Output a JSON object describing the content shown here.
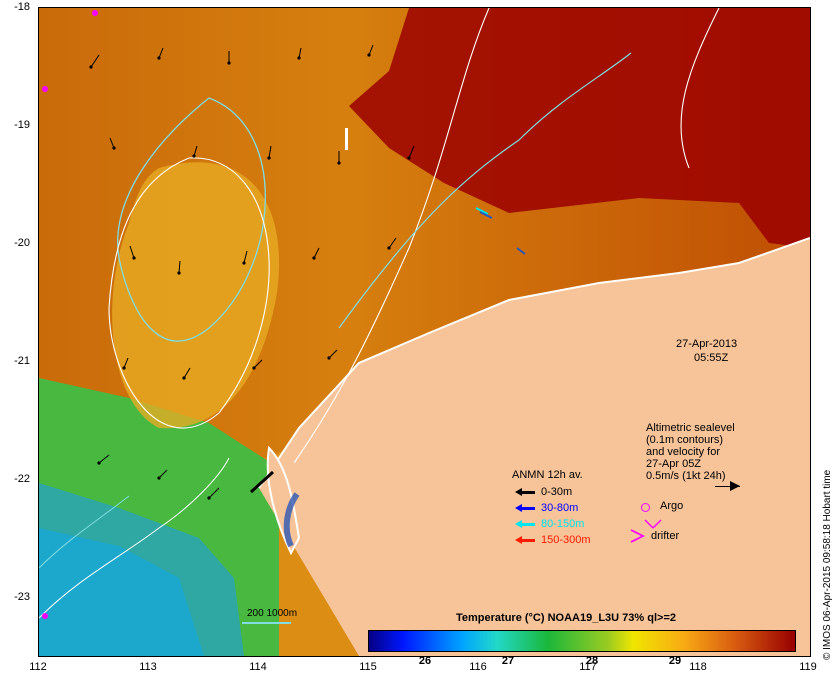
{
  "map": {
    "timestamp_date": "27-Apr-2013",
    "timestamp_time": "05:55Z",
    "latitudes": [
      "-18",
      "-19",
      "-20",
      "-21",
      "-22",
      "-23"
    ],
    "longitudes": [
      "112",
      "113",
      "114",
      "115",
      "116",
      "117",
      "118",
      "119"
    ],
    "contour_legend": "200  1000m",
    "side_credit": "© IMOS 06-Apr-2015 09:58:18 Hobart time"
  },
  "sealevel_note": {
    "lines": [
      "Altimetric sealevel",
      "(0.1m contours)",
      "and velocity for",
      "27-Apr 05Z",
      "0.5m/s (1kt 24h)"
    ]
  },
  "anmn_legend": {
    "title": "ANMN 12h av.",
    "items": [
      {
        "label": "0-30m",
        "color": "#000000"
      },
      {
        "label": "30-80m",
        "color": "#0000ff"
      },
      {
        "label": "80-150m",
        "color": "#00e5ee"
      },
      {
        "label": "150-300m",
        "color": "#ff1a00"
      }
    ]
  },
  "markers": {
    "argo_label": "Argo",
    "drifter_label": "drifter",
    "argo_color": "#ff00ff",
    "drifter_color": "#ff00ff"
  },
  "colorbar": {
    "title": "Temperature (°C) NOAA19_L3U 73% ql>=2",
    "ticks": [
      "26",
      "27",
      "28",
      "29"
    ]
  },
  "colors": {
    "land": "#f7c399",
    "coast": "#ffffff",
    "contour_shallow": "#7fdde4",
    "contour_deep": "#ffffff",
    "warm_patch": "#9b0000"
  }
}
